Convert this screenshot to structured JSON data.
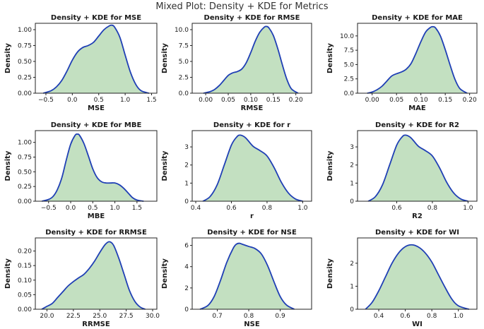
{
  "figure_title": "Mixed Plot: Density + KDE for Metrics",
  "colors": {
    "fill": "#a9d3a6",
    "kde": "#1f3fb5",
    "frame": "#222222"
  },
  "chart_data": [
    {
      "type": "area",
      "title": "Density + KDE for MSE",
      "xlabel": "MSE",
      "ylabel": "Density",
      "xlim": [
        -0.7,
        1.6
      ],
      "ylim": [
        0,
        1.1
      ],
      "xticks": [
        -0.5,
        0.0,
        0.5,
        1.0,
        1.5
      ],
      "xtick_labels": [
        "−0.5",
        "0.0",
        "0.5",
        "1.0",
        "1.5"
      ],
      "yticks": [
        0.0,
        0.25,
        0.5,
        0.75,
        1.0
      ],
      "ytick_labels": [
        "0.00",
        "0.25",
        "0.50",
        "0.75",
        "1.00"
      ],
      "x": [
        -0.55,
        -0.4,
        -0.3,
        -0.2,
        -0.1,
        0.0,
        0.1,
        0.2,
        0.3,
        0.4,
        0.5,
        0.6,
        0.7,
        0.75,
        0.8,
        0.9,
        1.0,
        1.1,
        1.2,
        1.3,
        1.45
      ],
      "y": [
        0.0,
        0.04,
        0.1,
        0.2,
        0.35,
        0.52,
        0.65,
        0.72,
        0.75,
        0.8,
        0.9,
        1.0,
        1.06,
        1.07,
        1.04,
        0.88,
        0.6,
        0.33,
        0.14,
        0.04,
        0.0
      ]
    },
    {
      "type": "area",
      "title": "Density + KDE for RMSE",
      "xlabel": "RMSE",
      "ylabel": "Density",
      "xlim": [
        -0.03,
        0.235
      ],
      "ylim": [
        0,
        11
      ],
      "xticks": [
        0.0,
        0.05,
        0.1,
        0.15,
        0.2
      ],
      "xtick_labels": [
        "0.00",
        "0.05",
        "0.10",
        "0.15",
        "0.20"
      ],
      "yticks": [
        0.0,
        2.5,
        5.0,
        7.5,
        10.0
      ],
      "ytick_labels": [
        "0.0",
        "2.5",
        "5.0",
        "7.5",
        "10.0"
      ],
      "x": [
        -0.005,
        0.01,
        0.02,
        0.03,
        0.04,
        0.05,
        0.06,
        0.07,
        0.08,
        0.09,
        0.1,
        0.11,
        0.12,
        0.13,
        0.135,
        0.14,
        0.15,
        0.16,
        0.17,
        0.18,
        0.19,
        0.205
      ],
      "y": [
        0.0,
        0.25,
        0.6,
        1.2,
        2.0,
        2.8,
        3.2,
        3.4,
        3.8,
        4.8,
        6.4,
        8.2,
        9.6,
        10.4,
        10.5,
        10.3,
        9.1,
        7.0,
        4.5,
        2.2,
        0.7,
        0.0
      ]
    },
    {
      "type": "area",
      "title": "Density + KDE for MAE",
      "xlabel": "MAE",
      "ylabel": "Density",
      "xlim": [
        -0.03,
        0.215
      ],
      "ylim": [
        0,
        12.2
      ],
      "xticks": [
        0.0,
        0.05,
        0.1,
        0.15,
        0.2
      ],
      "xtick_labels": [
        "0.00",
        "0.05",
        "0.10",
        "0.15",
        "0.20"
      ],
      "yticks": [
        0.0,
        2.5,
        5.0,
        7.5,
        10.0
      ],
      "ytick_labels": [
        "0.0",
        "2.5",
        "5.0",
        "7.5",
        "10.0"
      ],
      "x": [
        -0.01,
        0.0,
        0.01,
        0.02,
        0.03,
        0.04,
        0.05,
        0.06,
        0.07,
        0.08,
        0.09,
        0.1,
        0.11,
        0.12,
        0.125,
        0.13,
        0.14,
        0.15,
        0.16,
        0.17,
        0.18,
        0.195
      ],
      "y": [
        0.0,
        0.2,
        0.6,
        1.2,
        2.1,
        3.0,
        3.4,
        3.7,
        4.2,
        5.2,
        7.0,
        9.0,
        10.7,
        11.5,
        11.6,
        11.4,
        10.0,
        7.6,
        4.9,
        2.4,
        0.8,
        0.0
      ]
    },
    {
      "type": "area",
      "title": "Density + KDE for MBE",
      "xlabel": "MBE",
      "ylabel": "Density",
      "xlim": [
        -0.8,
        1.95
      ],
      "ylim": [
        0,
        1.2
      ],
      "xticks": [
        -0.5,
        0.0,
        0.5,
        1.0,
        1.5
      ],
      "xtick_labels": [
        "−0.5",
        "0.0",
        "0.5",
        "1.0",
        "1.5"
      ],
      "yticks": [
        0.0,
        0.25,
        0.5,
        0.75,
        1.0
      ],
      "ytick_labels": [
        "0.00",
        "0.25",
        "0.50",
        "0.75",
        "1.00"
      ],
      "x": [
        -0.65,
        -0.5,
        -0.4,
        -0.3,
        -0.2,
        -0.1,
        0.0,
        0.1,
        0.15,
        0.2,
        0.3,
        0.4,
        0.5,
        0.6,
        0.7,
        0.8,
        0.9,
        1.0,
        1.1,
        1.2,
        1.3,
        1.4,
        1.5,
        1.65
      ],
      "y": [
        0.0,
        0.03,
        0.08,
        0.2,
        0.4,
        0.7,
        0.97,
        1.12,
        1.14,
        1.12,
        0.98,
        0.77,
        0.55,
        0.4,
        0.33,
        0.31,
        0.31,
        0.31,
        0.28,
        0.22,
        0.14,
        0.06,
        0.02,
        0.0
      ]
    },
    {
      "type": "area",
      "title": "Density + KDE for r",
      "xlabel": "r",
      "ylabel": "Density",
      "xlim": [
        0.38,
        1.05
      ],
      "ylim": [
        0,
        3.9
      ],
      "xticks": [
        0.4,
        0.6,
        0.8,
        1.0
      ],
      "xtick_labels": [
        "0.4",
        "0.6",
        "0.8",
        "1.0"
      ],
      "yticks": [
        0,
        1,
        2,
        3
      ],
      "ytick_labels": [
        "0",
        "1",
        "2",
        "3"
      ],
      "x": [
        0.44,
        0.48,
        0.52,
        0.56,
        0.6,
        0.63,
        0.65,
        0.68,
        0.72,
        0.76,
        0.8,
        0.84,
        0.88,
        0.92,
        0.96,
        1.0
      ],
      "y": [
        0.0,
        0.25,
        0.9,
        2.0,
        3.1,
        3.55,
        3.65,
        3.5,
        3.05,
        2.8,
        2.5,
        1.85,
        1.05,
        0.45,
        0.12,
        0.0
      ]
    },
    {
      "type": "area",
      "title": "Density + KDE for R2",
      "xlabel": "R2",
      "ylabel": "Density",
      "xlim": [
        0.38,
        1.05
      ],
      "ylim": [
        0,
        3.9
      ],
      "xticks": [
        0.6,
        0.8,
        1.0
      ],
      "xtick_labels": [
        "0.6",
        "0.8",
        "1.0"
      ],
      "yticks": [
        0,
        1,
        2,
        3
      ],
      "ytick_labels": [
        "0",
        "1",
        "2",
        "3"
      ],
      "x": [
        0.44,
        0.48,
        0.52,
        0.56,
        0.6,
        0.63,
        0.65,
        0.68,
        0.72,
        0.76,
        0.8,
        0.84,
        0.88,
        0.92,
        0.96,
        1.0
      ],
      "y": [
        0.0,
        0.25,
        0.9,
        2.0,
        3.1,
        3.55,
        3.65,
        3.5,
        3.05,
        2.8,
        2.5,
        1.85,
        1.05,
        0.45,
        0.12,
        0.0
      ]
    },
    {
      "type": "area",
      "title": "Density + KDE for RRMSE",
      "xlabel": "RRMSE",
      "ylabel": "Density",
      "xlim": [
        18.9,
        30.4
      ],
      "ylim": [
        0,
        0.245
      ],
      "xticks": [
        20.0,
        22.5,
        25.0,
        27.5,
        30.0
      ],
      "xtick_labels": [
        "20.0",
        "22.5",
        "25.0",
        "27.5",
        "30.0"
      ],
      "yticks": [
        0.0,
        0.05,
        0.1,
        0.15,
        0.2
      ],
      "ytick_labels": [
        "0.00",
        "0.05",
        "0.10",
        "0.15",
        "0.20"
      ],
      "x": [
        19.5,
        20.0,
        20.5,
        21.0,
        21.5,
        22.0,
        22.5,
        23.0,
        23.5,
        24.0,
        24.5,
        25.0,
        25.5,
        25.9,
        26.3,
        26.8,
        27.3,
        27.8,
        28.3,
        28.8,
        29.3
      ],
      "y": [
        0.0,
        0.01,
        0.02,
        0.04,
        0.06,
        0.08,
        0.095,
        0.108,
        0.12,
        0.14,
        0.165,
        0.195,
        0.222,
        0.232,
        0.22,
        0.175,
        0.12,
        0.065,
        0.028,
        0.008,
        0.0
      ]
    },
    {
      "type": "area",
      "title": "Density + KDE for NSE",
      "xlabel": "NSE",
      "ylabel": "Density",
      "xlim": [
        0.62,
        1.0
      ],
      "ylim": [
        0,
        6.7
      ],
      "xticks": [
        0.7,
        0.8,
        0.9
      ],
      "xtick_labels": [
        "0.7",
        "0.8",
        "0.9"
      ],
      "yticks": [
        0,
        2,
        4,
        6
      ],
      "ytick_labels": [
        "0",
        "2",
        "4",
        "6"
      ],
      "x": [
        0.645,
        0.67,
        0.69,
        0.71,
        0.73,
        0.75,
        0.76,
        0.77,
        0.78,
        0.8,
        0.82,
        0.84,
        0.86,
        0.88,
        0.9,
        0.92,
        0.945
      ],
      "y": [
        0.0,
        0.35,
        1.2,
        2.7,
        4.4,
        5.7,
        6.1,
        6.2,
        6.1,
        5.9,
        5.7,
        5.2,
        4.1,
        2.6,
        1.2,
        0.4,
        0.0
      ]
    },
    {
      "type": "area",
      "title": "Density + KDE for WI",
      "xlabel": "WI",
      "ylabel": "Density",
      "xlim": [
        0.24,
        1.14
      ],
      "ylim": [
        0,
        3.1
      ],
      "xticks": [
        0.4,
        0.6,
        0.8,
        1.0
      ],
      "xtick_labels": [
        "0.4",
        "0.6",
        "0.8",
        "1.0"
      ],
      "yticks": [
        0,
        1,
        2
      ],
      "ytick_labels": [
        "0",
        "1",
        "2"
      ],
      "x": [
        0.3,
        0.35,
        0.4,
        0.45,
        0.5,
        0.55,
        0.6,
        0.65,
        0.7,
        0.75,
        0.8,
        0.85,
        0.9,
        0.95,
        1.0,
        1.08
      ],
      "y": [
        0.0,
        0.3,
        0.8,
        1.4,
        2.0,
        2.45,
        2.72,
        2.8,
        2.7,
        2.45,
        2.05,
        1.5,
        0.95,
        0.45,
        0.15,
        0.0
      ]
    }
  ]
}
